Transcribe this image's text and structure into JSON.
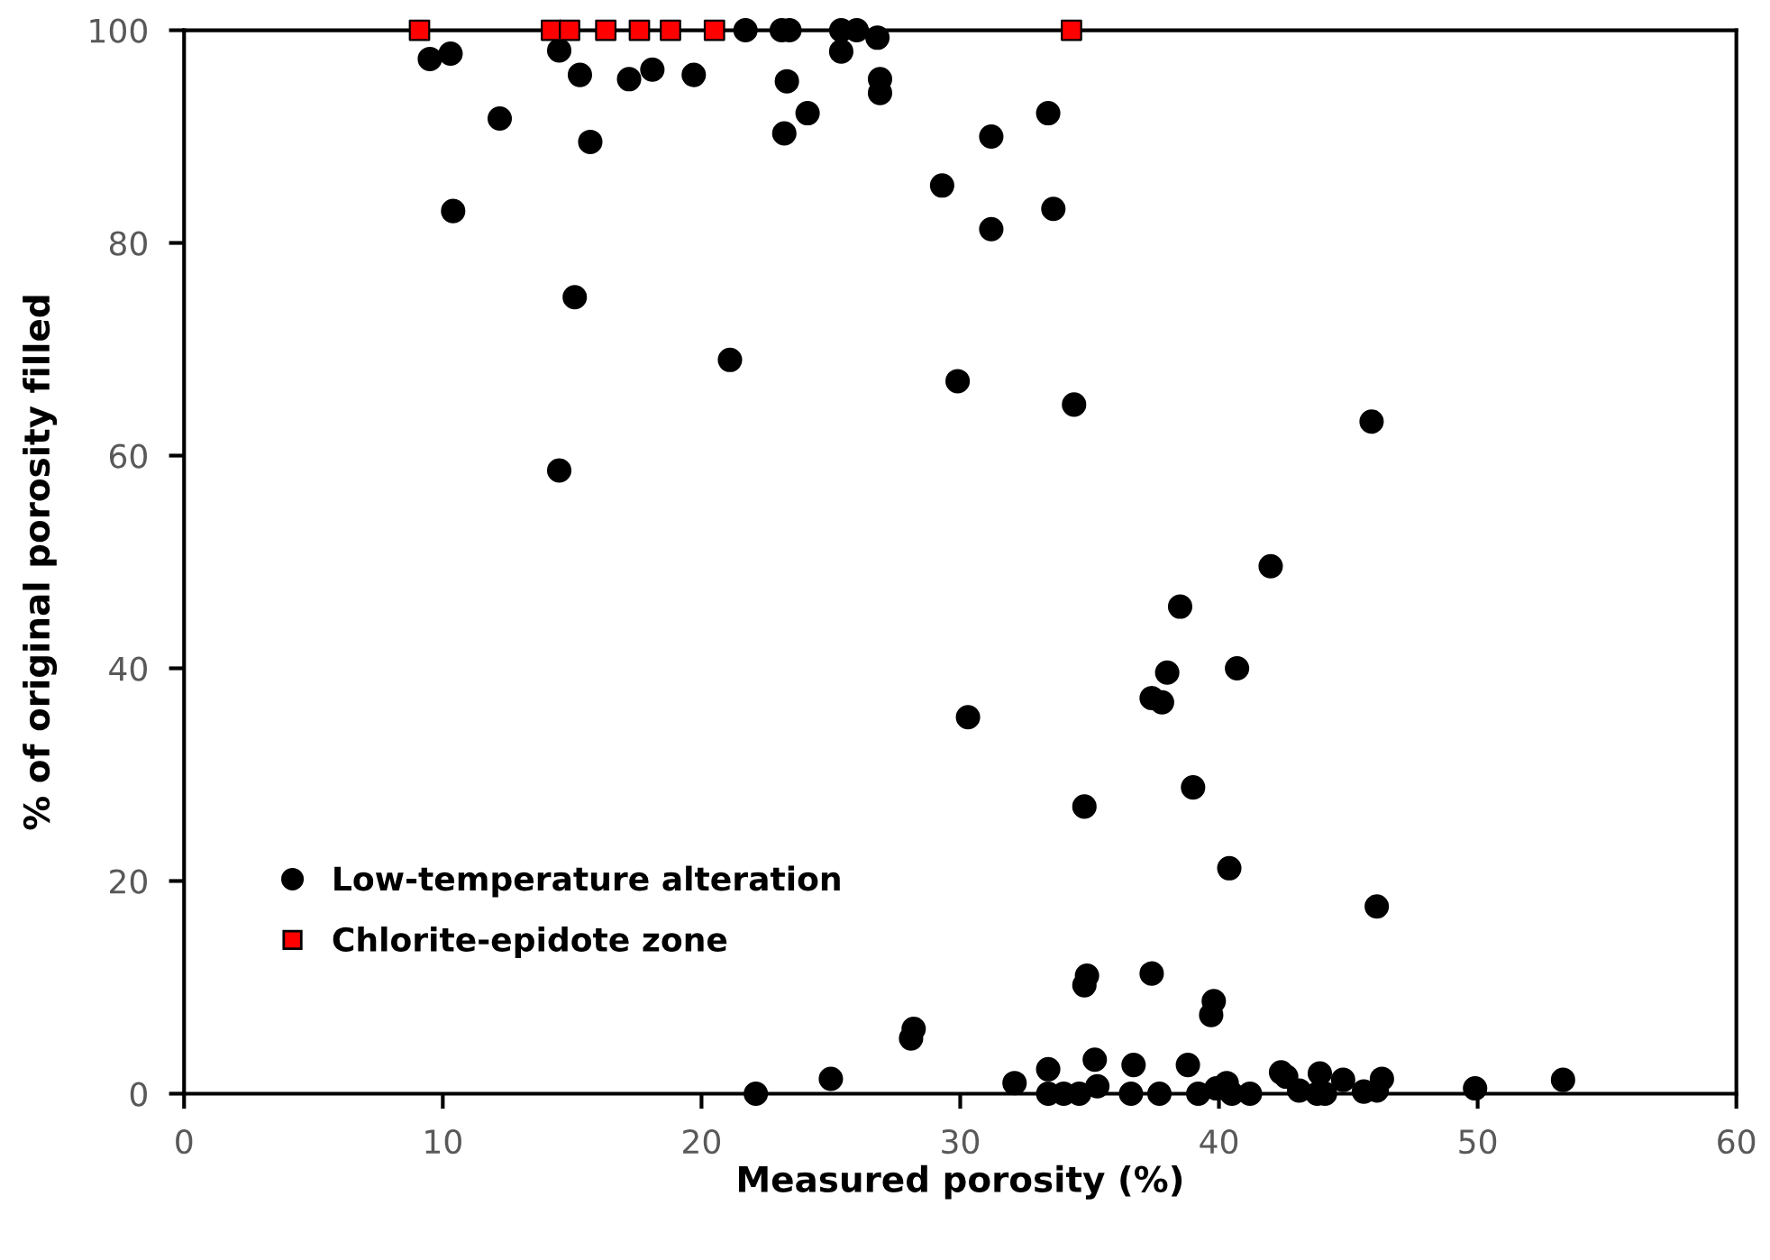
{
  "chart_data": {
    "type": "scatter",
    "xlabel": "Measured porosity (%)",
    "ylabel": "% of original porosity filled",
    "xlim": [
      0,
      60
    ],
    "ylim": [
      0,
      100
    ],
    "xticks": [
      0,
      10,
      20,
      30,
      40,
      50,
      60
    ],
    "yticks": [
      0,
      20,
      40,
      60,
      80,
      100
    ],
    "grid": false,
    "legend": "bottom left",
    "series": [
      {
        "name": "Low-temperature alteration",
        "color": "#000000",
        "marker": "circle",
        "x": [
          21.7,
          23.1,
          23.4,
          25.4,
          26.0,
          26.8,
          9.5,
          10.3,
          14.5,
          25.4,
          15.3,
          17.2,
          18.1,
          19.7,
          23.3,
          26.9,
          26.9,
          12.2,
          24.1,
          15.7,
          23.2,
          31.2,
          33.4,
          29.3,
          31.2,
          33.6,
          10.4,
          15.1,
          21.1,
          14.5,
          29.9,
          34.4,
          45.9,
          42.0,
          38.5,
          38.0,
          40.7,
          37.4,
          37.8,
          30.3,
          39.0,
          34.8,
          40.4,
          46.1,
          34.9,
          34.8,
          37.4,
          39.8,
          39.7,
          28.2,
          28.1,
          25.0,
          22.1,
          32.1,
          33.4,
          35.2,
          36.7,
          38.8,
          42.4,
          42.6,
          43.9,
          44.8,
          46.3,
          49.9,
          53.3,
          33.4,
          34.0,
          34.6,
          35.3,
          36.6,
          37.7,
          39.2,
          39.9,
          40.3,
          40.5,
          41.2,
          43.1,
          43.8,
          44.1,
          45.6,
          46.1
        ],
        "values": [
          100,
          100,
          100,
          100,
          100,
          99.3,
          97.3,
          97.8,
          98.1,
          98.0,
          95.8,
          95.4,
          96.3,
          95.8,
          95.2,
          95.4,
          94.1,
          91.7,
          92.2,
          89.5,
          90.3,
          90.0,
          92.2,
          85.4,
          81.3,
          83.2,
          83.0,
          74.9,
          69.0,
          58.6,
          67.0,
          64.8,
          63.2,
          49.6,
          45.8,
          39.6,
          40.0,
          37.2,
          36.8,
          35.4,
          28.8,
          27.0,
          21.2,
          17.6,
          11.1,
          10.2,
          11.3,
          8.7,
          7.4,
          6.1,
          5.2,
          1.4,
          0,
          1.0,
          2.3,
          3.2,
          2.7,
          2.7,
          2.0,
          1.6,
          1.9,
          1.3,
          1.4,
          0.5,
          1.3,
          0,
          0,
          0,
          0.7,
          0,
          0,
          0,
          0.5,
          1.0,
          0,
          0,
          0.3,
          0,
          0,
          0.2,
          0.3
        ]
      },
      {
        "name": "Chlorite-epidote zone",
        "color": "#ff0000",
        "marker": "square",
        "x": [
          9.1,
          14.2,
          14.9,
          16.0,
          16.3,
          17.6,
          18.6,
          18.8,
          20.5,
          34.3
        ],
        "values": [
          100,
          100,
          100,
          null,
          100,
          100,
          null,
          100,
          100,
          100
        ]
      }
    ]
  }
}
